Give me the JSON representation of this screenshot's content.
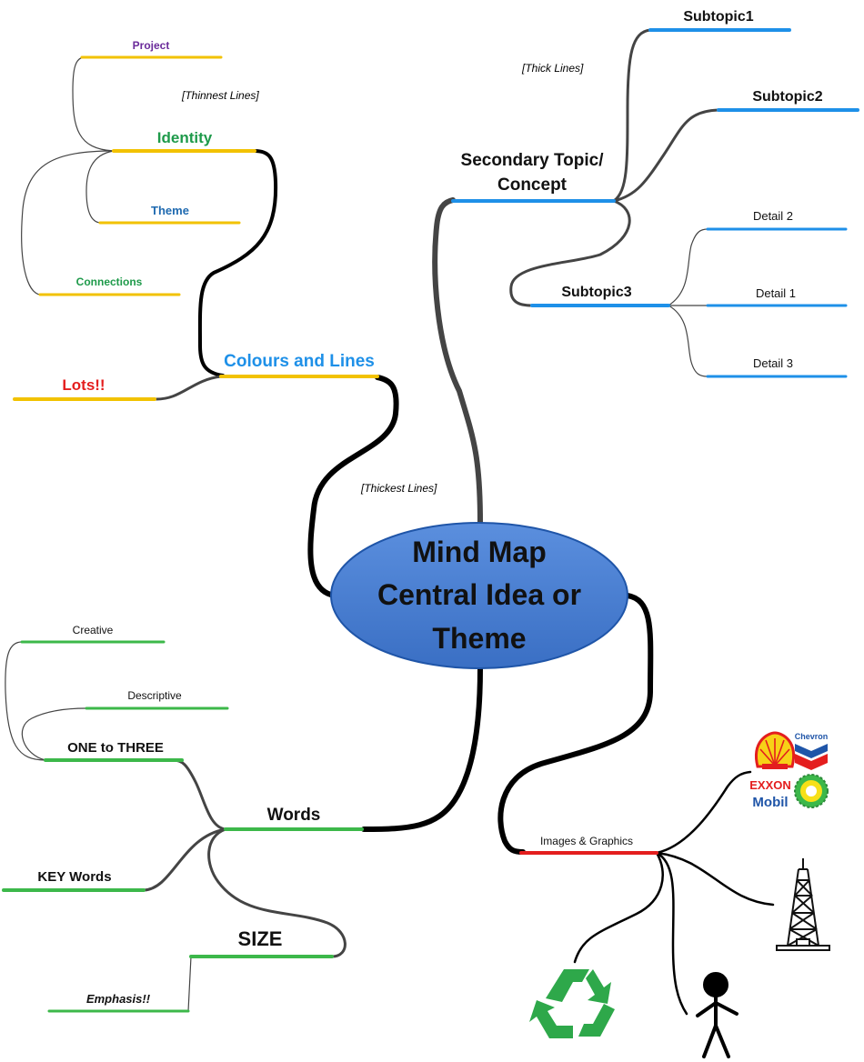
{
  "central": {
    "line1": "Mind Map",
    "line2": "Central Idea or",
    "line3": "Theme"
  },
  "colours": {
    "yellow": "#f2c200",
    "blue": "#1e90e8",
    "green": "#3cb84a",
    "red": "#e41e1e",
    "black": "#000000",
    "gray": "#444444",
    "ellipse_fill": "#4a7fd0",
    "ellipse_stroke": "#1f55a8"
  },
  "notes": {
    "thinnest": "[Thinnest Lines]",
    "thick": "[Thick Lines]",
    "thickest": "[Thickest Lines]"
  },
  "branches": {
    "colours_and_lines": {
      "label": "Colours and Lines",
      "children": {
        "identity": "Identity",
        "project": "Project",
        "theme": "Theme",
        "connections": "Connections",
        "lots": "Lots!!"
      }
    },
    "secondary": {
      "label_line1": "Secondary Topic/",
      "label_line2": "Concept",
      "subtopics": {
        "s1": "Subtopic1",
        "s2": "Subtopic2",
        "s3": "Subtopic3"
      },
      "details": {
        "d1": "Detail 1",
        "d2": "Detail 2",
        "d3": "Detail 3"
      }
    },
    "words": {
      "label": "Words",
      "children": {
        "one_to_three": "ONE to THREE",
        "creative": "Creative",
        "descriptive": "Descriptive",
        "key_words": "KEY Words",
        "size": "SIZE",
        "emphasis": "Emphasis!!"
      }
    },
    "images": {
      "label": "Images & Graphics",
      "icons": [
        "oil-company-logos-icon",
        "oil-derrick-icon",
        "stick-figure-icon",
        "recycle-icon"
      ],
      "logos": {
        "chevron": "Chevron",
        "exxon": "EXXON",
        "mobil": "Mobil"
      }
    }
  }
}
